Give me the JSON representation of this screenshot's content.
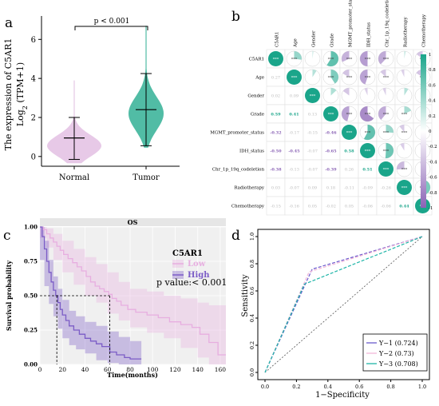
{
  "colors": {
    "normal": "#e3bfe3",
    "tumor": "#32b095",
    "low": "#e7aee0",
    "high": "#7b5cc6",
    "pos": "#1aa58a",
    "neg": "#8a62b5",
    "roc1": "#6a5acd",
    "roc2": "#f2b6d8",
    "roc3": "#1fb5a8"
  },
  "chart_data": [
    {
      "panel": "a",
      "type": "violin",
      "ylabel_line1": "The expression  of C5AR1",
      "ylabel_line2": "Log",
      "ylabel_sub": "2",
      "ylabel_tail": " (TPM+1)",
      "categories": [
        "Normal",
        "Tumor"
      ],
      "yticks": [
        "0",
        "2",
        "4",
        "6"
      ],
      "ylim": [
        -0.5,
        7.2
      ],
      "pvalue_label": "p < 0.001",
      "groups": [
        {
          "name": "Normal",
          "mean": 0.95,
          "lower": -0.15,
          "upper": 2.0,
          "min": -0.35,
          "max": 3.9
        },
        {
          "name": "Tumor",
          "mean": 2.4,
          "lower": 0.55,
          "upper": 4.25,
          "min": 0.45,
          "max": 6.7
        }
      ]
    },
    {
      "panel": "b",
      "type": "heatmap",
      "variables": [
        "C5AR1",
        "Age",
        "Gender",
        "Grade",
        "MGMT_promoter_status",
        "IDH_status",
        "Chr_1p_19q_codeletion",
        "Radiotherapy",
        "Chemotherapy"
      ],
      "lower": [
        [
          "0.27"
        ],
        [
          "0.02",
          "0.09"
        ],
        [
          "0.59",
          "0.41",
          "0.13"
        ],
        [
          "-0.32",
          "-0.17",
          "-0.15",
          "-0.46"
        ],
        [
          "-0.50",
          "-0.45",
          "-0.07",
          "-0.65",
          "0.58"
        ],
        [
          "-0.38",
          "-0.13",
          "-0.07",
          "-0.39",
          "0.26",
          "0.51"
        ],
        [
          "0.03",
          "-0.07",
          "0.09",
          "0.18",
          "-0.11",
          "-0.09",
          "-0.26"
        ],
        [
          "-0.15",
          "-0.16",
          "0.05",
          "-0.02",
          "0.05",
          "-0.06",
          "-0.06",
          "0.44"
        ]
      ],
      "upper": [
        [
          0.27,
          0.02,
          0.59,
          -0.32,
          -0.5,
          -0.38,
          0.03,
          -0.15
        ],
        [
          0.09,
          0.41,
          -0.17,
          -0.45,
          -0.13,
          -0.07,
          -0.16
        ],
        [
          0.13,
          -0.15,
          -0.07,
          -0.07,
          0.09,
          0.05
        ],
        [
          -0.46,
          -0.65,
          -0.39,
          0.18,
          -0.02
        ],
        [
          0.58,
          0.26,
          -0.11,
          0.05
        ],
        [
          0.51,
          -0.09,
          -0.06
        ],
        [
          -0.26,
          -0.06
        ],
        [
          0.44
        ]
      ],
      "upper_stars": [
        [
          "***",
          "",
          "***",
          "***",
          "***",
          "***",
          "",
          "***"
        ],
        [
          "",
          "***",
          "***",
          "***",
          "***",
          "",
          "***"
        ],
        [
          "",
          "",
          "",
          "",
          "",
          ""
        ],
        [
          "***",
          "***",
          "***",
          "***",
          ""
        ],
        [
          "***",
          "***",
          "***",
          ""
        ],
        [
          "***",
          "",
          ""
        ],
        [
          "***",
          ""
        ],
        [
          "***"
        ]
      ],
      "diagonal_stars": "***",
      "scale": [
        "1",
        "0.8",
        "0.6",
        "0.4",
        "0.2",
        "0",
        "-0.2",
        "-0.4",
        "-0.6",
        "-0.8",
        "-1"
      ]
    },
    {
      "panel": "c",
      "type": "line",
      "title": "OS",
      "xlabel": "Time(months)",
      "ylabel": "Survival probability",
      "legend_title": "C5AR1",
      "pvalue_label": "p value:< 0.001",
      "xticks": [
        "0",
        "20",
        "40",
        "60",
        "80",
        "100",
        "120",
        "140",
        "160"
      ],
      "yticks": [
        "0.00",
        "0.25",
        "0.50",
        "0.75",
        "1.00"
      ],
      "xlim": [
        0,
        165
      ],
      "ylim": [
        0,
        1
      ],
      "median_times": [
        15,
        62
      ],
      "series": [
        {
          "name": "Low",
          "points": [
            [
              0,
              1
            ],
            [
              3,
              0.98
            ],
            [
              6,
              0.95
            ],
            [
              9,
              0.92
            ],
            [
              12,
              0.89
            ],
            [
              15,
              0.86
            ],
            [
              18,
              0.83
            ],
            [
              21,
              0.8
            ],
            [
              25,
              0.77
            ],
            [
              29,
              0.74
            ],
            [
              33,
              0.71
            ],
            [
              37,
              0.68
            ],
            [
              41,
              0.64
            ],
            [
              45,
              0.6
            ],
            [
              49,
              0.57
            ],
            [
              53,
              0.55
            ],
            [
              57,
              0.53
            ],
            [
              61,
              0.51
            ],
            [
              64,
              0.48
            ],
            [
              68,
              0.46
            ],
            [
              72,
              0.43
            ],
            [
              78,
              0.4
            ],
            [
              85,
              0.38
            ],
            [
              95,
              0.36
            ],
            [
              105,
              0.34
            ],
            [
              115,
              0.31
            ],
            [
              125,
              0.29
            ],
            [
              135,
              0.27
            ],
            [
              142,
              0.22
            ],
            [
              150,
              0.16
            ],
            [
              158,
              0.07
            ],
            [
              165,
              0.07
            ]
          ],
          "lower": [
            [
              0,
              1
            ],
            [
              6,
              0.92
            ],
            [
              12,
              0.85
            ],
            [
              20,
              0.76
            ],
            [
              30,
              0.67
            ],
            [
              40,
              0.58
            ],
            [
              50,
              0.5
            ],
            [
              60,
              0.45
            ],
            [
              70,
              0.37
            ],
            [
              80,
              0.32
            ],
            [
              95,
              0.27
            ],
            [
              110,
              0.23
            ],
            [
              125,
              0.19
            ],
            [
              140,
              0.12
            ],
            [
              150,
              0.05
            ],
            [
              165,
              0.0
            ]
          ],
          "upper": [
            [
              0,
              1
            ],
            [
              6,
              0.99
            ],
            [
              12,
              0.95
            ],
            [
              20,
              0.9
            ],
            [
              30,
              0.84
            ],
            [
              40,
              0.78
            ],
            [
              50,
              0.73
            ],
            [
              60,
              0.67
            ],
            [
              70,
              0.6
            ],
            [
              80,
              0.55
            ],
            [
              95,
              0.53
            ],
            [
              110,
              0.5
            ],
            [
              125,
              0.48
            ],
            [
              140,
              0.45
            ],
            [
              150,
              0.43
            ],
            [
              165,
              0.42
            ]
          ]
        },
        {
          "name": "High",
          "points": [
            [
              0,
              1
            ],
            [
              2,
              0.93
            ],
            [
              4,
              0.84
            ],
            [
              6,
              0.75
            ],
            [
              8,
              0.67
            ],
            [
              10,
              0.6
            ],
            [
              12,
              0.54
            ],
            [
              14,
              0.5
            ],
            [
              16,
              0.45
            ],
            [
              18,
              0.4
            ],
            [
              20,
              0.36
            ],
            [
              23,
              0.32
            ],
            [
              26,
              0.28
            ],
            [
              30,
              0.25
            ],
            [
              35,
              0.22
            ],
            [
              40,
              0.19
            ],
            [
              45,
              0.17
            ],
            [
              50,
              0.15
            ],
            [
              55,
              0.13
            ],
            [
              62,
              0.09
            ],
            [
              68,
              0.07
            ],
            [
              75,
              0.05
            ],
            [
              80,
              0.04
            ],
            [
              90,
              0.04
            ]
          ],
          "lower": [
            [
              0,
              1
            ],
            [
              4,
              0.76
            ],
            [
              8,
              0.57
            ],
            [
              12,
              0.44
            ],
            [
              16,
              0.35
            ],
            [
              20,
              0.26
            ],
            [
              26,
              0.19
            ],
            [
              32,
              0.14
            ],
            [
              40,
              0.11
            ],
            [
              50,
              0.08
            ],
            [
              60,
              0.03
            ],
            [
              70,
              0.01
            ],
            [
              80,
              0.0
            ],
            [
              90,
              0.0
            ]
          ],
          "upper": [
            [
              0,
              1
            ],
            [
              4,
              0.9
            ],
            [
              8,
              0.76
            ],
            [
              12,
              0.64
            ],
            [
              16,
              0.55
            ],
            [
              20,
              0.47
            ],
            [
              26,
              0.39
            ],
            [
              32,
              0.35
            ],
            [
              40,
              0.31
            ],
            [
              50,
              0.28
            ],
            [
              60,
              0.24
            ],
            [
              70,
              0.2
            ],
            [
              80,
              0.17
            ],
            [
              90,
              0.17
            ]
          ]
        }
      ]
    },
    {
      "panel": "d",
      "type": "line",
      "xlabel": "1−Specificity",
      "ylabel": "Sensitivity",
      "xticks": [
        "0.0",
        "0.2",
        "0.4",
        "0.6",
        "0.8",
        "1.0"
      ],
      "yticks": [
        "0.0",
        "0.2",
        "0.4",
        "0.6",
        "0.8",
        "1.0"
      ],
      "xlim": [
        0,
        1
      ],
      "ylim": [
        0,
        1
      ],
      "series": [
        {
          "name": "Y−1 (0.724)",
          "points": [
            [
              0,
              0
            ],
            [
              0.3,
              0.76
            ],
            [
              1,
              1
            ]
          ]
        },
        {
          "name": "Y−2 (0.73)",
          "points": [
            [
              0,
              0
            ],
            [
              0.28,
              0.74
            ],
            [
              1,
              1
            ]
          ]
        },
        {
          "name": "Y−3 (0.708)",
          "points": [
            [
              0,
              0
            ],
            [
              0.25,
              0.65
            ],
            [
              1,
              1
            ]
          ]
        }
      ]
    }
  ],
  "panel_letters": [
    "a",
    "b",
    "c",
    "d"
  ]
}
